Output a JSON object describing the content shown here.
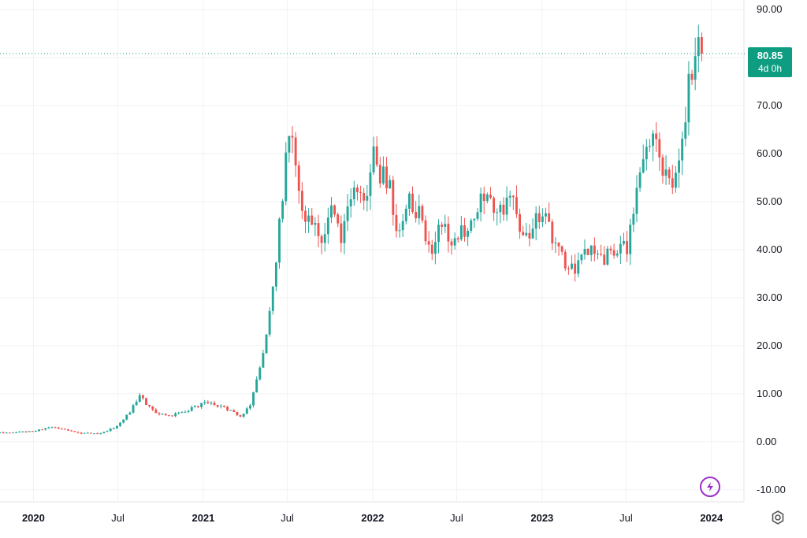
{
  "colors": {
    "up": "#26a69a",
    "down": "#ef5350",
    "grid": "#f0f2f5",
    "axis_text": "#131722",
    "last_price_line": "#0f9d82",
    "badge_bg": "#0f9d82",
    "bolt_accent": "#9b32c8"
  },
  "price_badge": {
    "price": "80.85",
    "countdown": "4d 0h"
  },
  "icons": {
    "bolt": "lightning-bolt-icon",
    "settings": "gear-icon"
  },
  "chart_data": {
    "type": "candlestick",
    "interval": "weekly",
    "title": "",
    "xlabel": "",
    "ylabel": "",
    "ylim": [
      -12.5,
      92
    ],
    "y_ticks": [
      "90.00",
      "80.00",
      "70.00",
      "60.00",
      "50.00",
      "40.00",
      "30.00",
      "20.00",
      "10.00",
      "0.00",
      "-10.00"
    ],
    "y_tick_values": [
      90,
      80,
      70,
      60,
      50,
      40,
      30,
      20,
      10,
      0,
      -10
    ],
    "x_range": [
      "2019-10-21",
      "2024-03-11"
    ],
    "x_ticks": [
      {
        "label": "2020",
        "date": "2020-01-01"
      },
      {
        "label": "Jul",
        "date": "2020-07-01"
      },
      {
        "label": "2021",
        "date": "2021-01-01"
      },
      {
        "label": "Jul",
        "date": "2021-07-01"
      },
      {
        "label": "2022",
        "date": "2022-01-01"
      },
      {
        "label": "Jul",
        "date": "2022-07-01"
      },
      {
        "label": "2023",
        "date": "2023-01-01"
      },
      {
        "label": "Jul",
        "date": "2023-07-01"
      },
      {
        "label": "2024",
        "date": "2024-01-01"
      }
    ],
    "grid": true,
    "last_price": 80.85,
    "anchors": [
      [
        "2019-10-21",
        1.8
      ],
      [
        "2019-12-01",
        2.0
      ],
      [
        "2020-01-15",
        2.4
      ],
      [
        "2020-02-20",
        3.0
      ],
      [
        "2020-03-20",
        2.5
      ],
      [
        "2020-04-15",
        1.8
      ],
      [
        "2020-06-01",
        1.8
      ],
      [
        "2020-06-20",
        2.5
      ],
      [
        "2020-07-10",
        3.5
      ],
      [
        "2020-08-01",
        6.0
      ],
      [
        "2020-08-25",
        10.0
      ],
      [
        "2020-09-10",
        7.5
      ],
      [
        "2020-10-01",
        6.0
      ],
      [
        "2020-11-01",
        5.5
      ],
      [
        "2020-12-15",
        7.0
      ],
      [
        "2021-01-10",
        8.0
      ],
      [
        "2021-02-15",
        7.5
      ],
      [
        "2021-03-15",
        6.0
      ],
      [
        "2021-04-01",
        5.0
      ],
      [
        "2021-04-20",
        8.0
      ],
      [
        "2021-05-10",
        15.0
      ],
      [
        "2021-05-25",
        22.0
      ],
      [
        "2021-06-10",
        35.0
      ],
      [
        "2021-06-20",
        45.0
      ],
      [
        "2021-07-01",
        55.0
      ],
      [
        "2021-07-15",
        67.0
      ],
      [
        "2021-07-25",
        58.0
      ],
      [
        "2021-08-10",
        48.0
      ],
      [
        "2021-09-01",
        45.0
      ],
      [
        "2021-09-25",
        42.0
      ],
      [
        "2021-10-15",
        50.0
      ],
      [
        "2021-11-01",
        42.0
      ],
      [
        "2021-11-20",
        50.0
      ],
      [
        "2021-12-10",
        55.0
      ],
      [
        "2021-12-25",
        48.0
      ],
      [
        "2022-01-10",
        62.0
      ],
      [
        "2022-01-25",
        55.0
      ],
      [
        "2022-02-10",
        55.0
      ],
      [
        "2022-03-01",
        42.0
      ],
      [
        "2022-03-25",
        50.0
      ],
      [
        "2022-04-15",
        48.0
      ],
      [
        "2022-05-01",
        43.0
      ],
      [
        "2022-05-15",
        38.0
      ],
      [
        "2022-06-01",
        47.0
      ],
      [
        "2022-06-20",
        42.0
      ],
      [
        "2022-07-15",
        43.0
      ],
      [
        "2022-08-15",
        46.0
      ],
      [
        "2022-09-01",
        51.0
      ],
      [
        "2022-09-20",
        50.0
      ],
      [
        "2022-10-15",
        49.0
      ],
      [
        "2022-11-05",
        50.0
      ],
      [
        "2022-11-25",
        42.0
      ],
      [
        "2022-12-15",
        44.0
      ],
      [
        "2023-01-10",
        48.0
      ],
      [
        "2023-01-30",
        42.0
      ],
      [
        "2023-02-20",
        38.0
      ],
      [
        "2023-03-20",
        36.0
      ],
      [
        "2023-04-15",
        40.0
      ],
      [
        "2023-05-15",
        38.0
      ],
      [
        "2023-06-15",
        40.0
      ],
      [
        "2023-07-10",
        40.5
      ],
      [
        "2023-07-25",
        48.0
      ],
      [
        "2023-08-15",
        58.0
      ],
      [
        "2023-09-01",
        63.0
      ],
      [
        "2023-09-20",
        58.0
      ],
      [
        "2023-10-05",
        55.0
      ],
      [
        "2023-10-20",
        52.0
      ],
      [
        "2023-10-30",
        60.0
      ],
      [
        "2023-11-10",
        62.0
      ],
      [
        "2023-11-17",
        77.0
      ],
      [
        "2023-11-27",
        78.0
      ],
      [
        "2023-12-11",
        80.85
      ]
    ]
  }
}
